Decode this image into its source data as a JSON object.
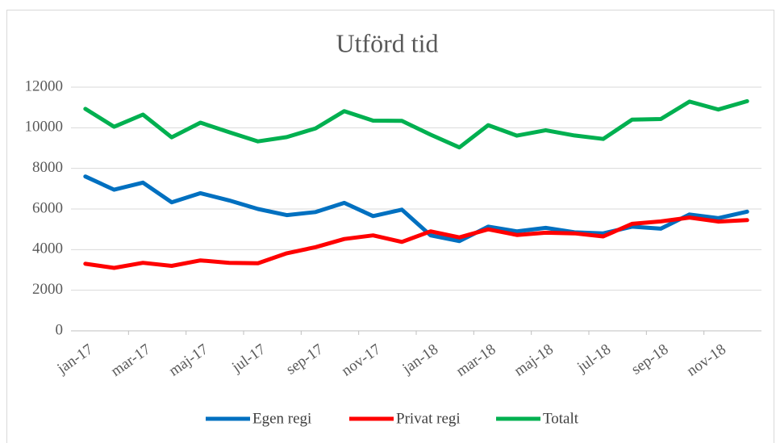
{
  "chart_data": {
    "type": "line",
    "title": "Utförd tid",
    "categories": [
      "jan-17",
      null,
      "mar-17",
      null,
      "maj-17",
      null,
      "jul-17",
      null,
      "sep-17",
      null,
      "nov-17",
      null,
      "jan-18",
      null,
      "mar-18",
      null,
      "maj-18",
      null,
      "jul-18",
      null,
      "sep-18",
      null,
      "nov-18",
      null
    ],
    "series": [
      {
        "name": "Egen regi",
        "color": "#0070c0",
        "values": [
          7600,
          6950,
          7300,
          6330,
          6780,
          6420,
          6000,
          5700,
          5850,
          6300,
          5650,
          5970,
          4700,
          4420,
          5130,
          4900,
          5070,
          4850,
          4800,
          5130,
          5030,
          5730,
          5550,
          5870
        ]
      },
      {
        "name": "Privat regi",
        "color": "#ff0000",
        "values": [
          3300,
          3100,
          3350,
          3200,
          3470,
          3350,
          3330,
          3820,
          4120,
          4520,
          4700,
          4380,
          4900,
          4600,
          5000,
          4720,
          4830,
          4800,
          4650,
          5270,
          5390,
          5580,
          5380,
          5450
        ]
      },
      {
        "name": "Totalt",
        "color": "#00b050",
        "values": [
          10930,
          10050,
          10650,
          9530,
          10250,
          9780,
          9330,
          9540,
          9970,
          10820,
          10350,
          10340,
          9660,
          9030,
          10130,
          9610,
          9880,
          9620,
          9450,
          10400,
          10430,
          11290,
          10900,
          11310
        ]
      }
    ],
    "ylim": [
      0,
      12000
    ],
    "yticks": [
      0,
      2000,
      4000,
      6000,
      8000,
      10000,
      12000
    ],
    "grid": true,
    "legend": "bottom"
  }
}
